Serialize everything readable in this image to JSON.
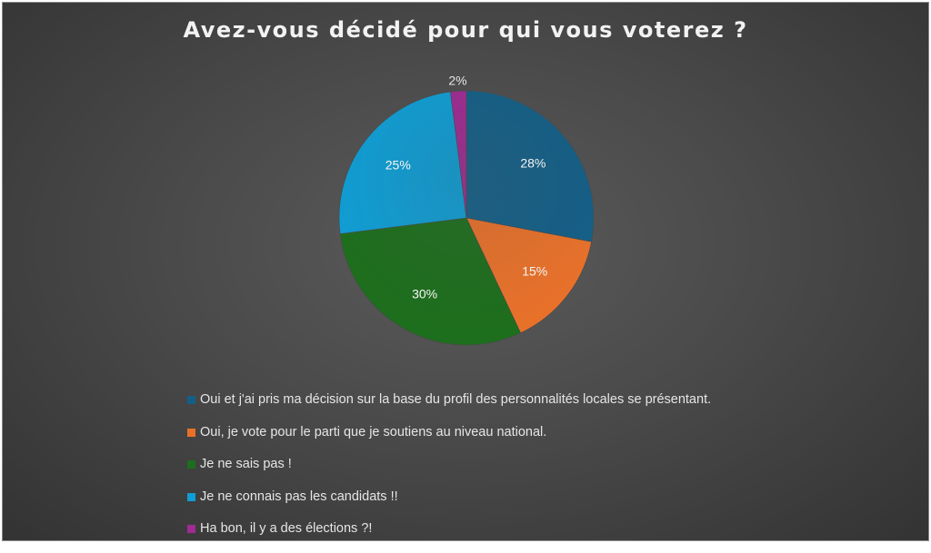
{
  "chart_data": {
    "type": "pie",
    "title": "Avez-vous décidé pour qui vous voterez ?",
    "slices": [
      {
        "label": "Oui et j'ai pris ma décision sur la base du profil des personnalités locales se présentant.",
        "value": 28,
        "data_label": "28%",
        "color": "#145f87"
      },
      {
        "label": "Oui, je vote pour le parti que je soutiens au niveau national.",
        "value": 15,
        "data_label": "15%",
        "color": "#e8712a"
      },
      {
        "label": "Je ne sais pas !",
        "value": 30,
        "data_label": "30%",
        "color": "#1d6e1d"
      },
      {
        "label": "Je ne connais pas les candidats !!",
        "value": 25,
        "data_label": "25%",
        "color": "#0f9ed5"
      },
      {
        "label": "Ha bon, il y a des élections ?!",
        "value": 2,
        "data_label": "2%",
        "color": "#a02b93"
      }
    ],
    "legend_position": "bottom"
  }
}
